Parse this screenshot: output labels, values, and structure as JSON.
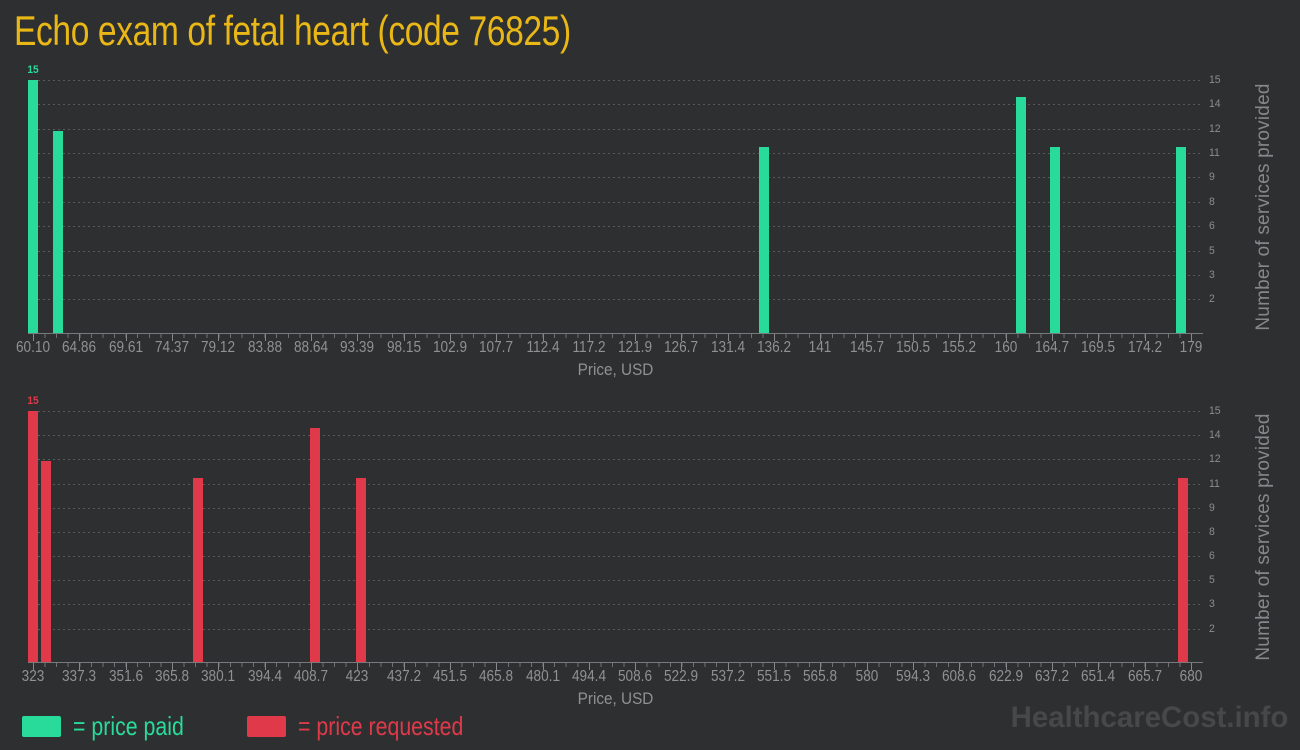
{
  "title": "Echo exam of fetal heart (code 76825)",
  "watermark": "HealthcareCost.info",
  "colors": {
    "background": "#2e2f30",
    "price_paid": "#28db9a",
    "price_requested": "#e0394a",
    "title": "#eab816",
    "axis_text": "#8f9193",
    "gridline": "#57595c",
    "watermark": "#464849"
  },
  "legend": [
    {
      "label": "= price paid",
      "series": "price_paid"
    },
    {
      "label": "= price requested",
      "series": "price_requested"
    }
  ],
  "y_axis": {
    "title": "Number of services provided",
    "max": 15,
    "gridline_labels": [
      "15",
      "14",
      "12",
      "11",
      "9",
      "8",
      "6",
      "5",
      "3",
      "2"
    ],
    "gridline_min_value": 2
  },
  "chart_data": [
    {
      "type": "bar",
      "name": "price paid",
      "series": "price_paid",
      "color": "#28db9a",
      "title": "",
      "xlabel": "Price, USD",
      "ylabel": "Number of services provided",
      "xlim": [
        60.1,
        179
      ],
      "ylim": [
        0,
        15
      ],
      "x_ticks": [
        "60.10",
        "64.86",
        "69.61",
        "74.37",
        "79.12",
        "83.88",
        "88.64",
        "93.39",
        "98.15",
        "102.9",
        "107.7",
        "112.4",
        "117.2",
        "121.9",
        "126.7",
        "131.4",
        "136.2",
        "141",
        "145.7",
        "150.5",
        "155.2",
        "160",
        "164.7",
        "169.5",
        "174.2",
        "179"
      ],
      "points": [
        {
          "x": 60.1,
          "y": 15
        },
        {
          "x": 62.7,
          "y": 12
        },
        {
          "x": 135.2,
          "y": 11
        },
        {
          "x": 161.5,
          "y": 14
        },
        {
          "x": 165.0,
          "y": 11
        },
        {
          "x": 178.0,
          "y": 11
        }
      ],
      "first_point_label": "15"
    },
    {
      "type": "bar",
      "name": "price requested",
      "series": "price_requested",
      "color": "#e0394a",
      "title": "",
      "xlabel": "Price, USD",
      "ylabel": "Number of services provided",
      "xlim": [
        323,
        680
      ],
      "ylim": [
        0,
        15
      ],
      "x_ticks": [
        "323",
        "337.3",
        "351.6",
        "365.8",
        "380.1",
        "394.4",
        "408.7",
        "423",
        "437.2",
        "451.5",
        "465.8",
        "480.1",
        "494.4",
        "508.6",
        "522.9",
        "537.2",
        "551.5",
        "565.8",
        "580",
        "594.3",
        "608.6",
        "622.9",
        "637.2",
        "651.4",
        "665.7",
        "680"
      ],
      "points": [
        {
          "x": 323,
          "y": 15
        },
        {
          "x": 327,
          "y": 12
        },
        {
          "x": 374,
          "y": 11
        },
        {
          "x": 410,
          "y": 14
        },
        {
          "x": 424,
          "y": 11
        },
        {
          "x": 677.5,
          "y": 11
        }
      ],
      "first_point_label": "15"
    }
  ]
}
